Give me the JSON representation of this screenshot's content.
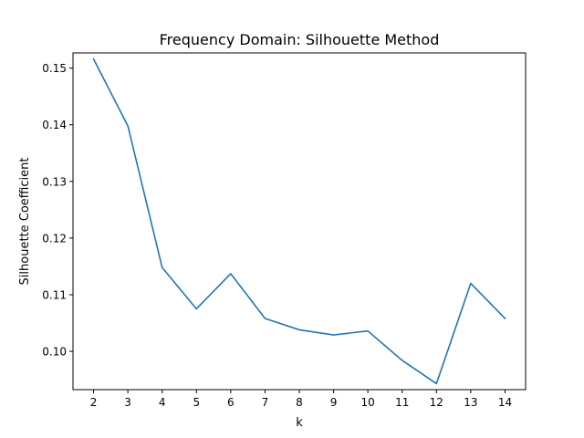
{
  "chart_data": {
    "type": "line",
    "title": "Frequency Domain: Silhouette Method",
    "xlabel": "k",
    "ylabel": "Silhouette Coefficient",
    "x": [
      2,
      3,
      4,
      5,
      6,
      7,
      8,
      9,
      10,
      11,
      12,
      13,
      14
    ],
    "series": [
      {
        "values": [
          0.1516,
          0.1398,
          0.1148,
          0.1075,
          0.1137,
          0.1058,
          0.1038,
          0.1029,
          0.1036,
          0.0984,
          0.0943,
          0.112,
          0.1058
        ],
        "color": "#1f77b4"
      }
    ],
    "xticks": [
      2,
      3,
      4,
      5,
      6,
      7,
      8,
      9,
      10,
      11,
      12,
      13,
      14
    ],
    "yticks": [
      "0.10",
      "0.11",
      "0.12",
      "0.13",
      "0.14",
      "0.15"
    ],
    "xlim": [
      1.4,
      14.6
    ],
    "ylim": [
      0.09324,
      0.15268
    ],
    "grid": false,
    "legend": "none"
  }
}
